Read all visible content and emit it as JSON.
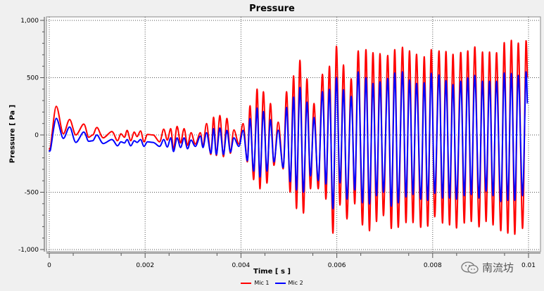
{
  "chart_data": {
    "type": "line",
    "title": "Pressure",
    "xlabel": "Time [ s ]",
    "ylabel": "Pressure [ Pa ]",
    "xlim": [
      0,
      0.01
    ],
    "ylim": [
      -1000,
      1000
    ],
    "x_ticks": [
      0,
      0.002,
      0.004,
      0.006,
      0.008,
      0.01
    ],
    "x_tick_labels": [
      "0",
      "0.002",
      "0.004",
      "0.006",
      "0.008",
      "0.01"
    ],
    "y_ticks": [
      -1000,
      -500,
      0,
      500,
      1000
    ],
    "y_tick_labels": [
      "-1,000",
      "-500",
      "0",
      "500",
      "1,000"
    ],
    "grid": true,
    "legend": "bottom-center",
    "t": [
      0,
      1.5e-05,
      0.000147,
      0.000293,
      0.000425,
      0.000557,
      0.000718,
      0.000821,
      0.000908,
      0.000996,
      0.001128,
      0.001304,
      0.001421,
      0.001495,
      0.001568,
      0.001626,
      0.0017,
      0.001773,
      0.001832,
      0.001905,
      0.001978,
      0.002051,
      0.002168,
      0.0023,
      0.002388,
      0.002462,
      0.002535,
      0.002593,
      0.002667,
      0.00274,
      0.002813,
      0.002886,
      0.00296,
      0.003048,
      0.00315,
      0.003209,
      0.003282,
      0.00337,
      0.003429,
      0.003487,
      0.00356,
      0.003634,
      0.003707,
      0.00378,
      0.003853,
      0.003956,
      0.004044,
      0.004132,
      0.00419,
      0.004264,
      0.004337,
      0.004396,
      0.004469,
      0.004542,
      0.004615,
      0.004689,
      0.004777,
      0.004879,
      0.004952,
      0.005026,
      0.005099,
      0.005158,
      0.005231,
      0.005304,
      0.005377,
      0.005451,
      0.005524,
      0.005612,
      0.0057,
      0.005773,
      0.005846,
      0.005919,
      0.005993,
      0.006066,
      0.006139,
      0.006212,
      0.0063,
      0.006374,
      0.006447,
      0.006535,
      0.006608,
      0.006681,
      0.006755,
      0.006828,
      0.006901,
      0.006974,
      0.007062,
      0.007136,
      0.007209,
      0.007282,
      0.00737,
      0.007443,
      0.007517,
      0.00759,
      0.007663,
      0.007751,
      0.007824,
      0.007897,
      0.007971,
      0.008044,
      0.008132,
      0.008205,
      0.008278,
      0.008352,
      0.008425,
      0.008498,
      0.008586,
      0.008659,
      0.008733,
      0.008806,
      0.008879,
      0.008967,
      0.00904,
      0.009114,
      0.009187,
      0.00926,
      0.009333,
      0.009421,
      0.009494,
      0.009568,
      0.009641,
      0.009714,
      0.009787,
      0.009875,
      0.009948,
      0.009977
    ],
    "series": [
      {
        "name": "Mic 1",
        "color": "#ff0000",
        "values": [
          -130,
          -120,
          250,
          10,
          135,
          0,
          95,
          -20,
          0,
          65,
          -25,
          30,
          -50,
          10,
          -20,
          40,
          -50,
          25,
          -15,
          35,
          -60,
          5,
          0,
          -60,
          50,
          -45,
          55,
          -125,
          75,
          -70,
          55,
          -90,
          20,
          -80,
          20,
          -100,
          100,
          -170,
          155,
          -180,
          170,
          -190,
          145,
          -160,
          45,
          -80,
          100,
          -235,
          255,
          -390,
          400,
          -470,
          377,
          -420,
          275,
          -265,
          112,
          -296,
          377,
          -500,
          516,
          -643,
          653,
          -683,
          490,
          -470,
          275,
          -470,
          530,
          -561,
          600,
          -857,
          775,
          -612,
          612,
          -734,
          490,
          -602,
          734,
          -785,
          745,
          -836,
          718,
          -755,
          710,
          -704,
          694,
          -816,
          745,
          -806,
          765,
          -765,
          734,
          -765,
          704,
          -806,
          683,
          -796,
          745,
          -714,
          734,
          -769,
          728,
          -785,
          704,
          -812,
          720,
          -769,
          734,
          -755,
          769,
          -802,
          724,
          -755,
          724,
          -785,
          718,
          -836,
          806,
          -857,
          826,
          -867,
          802,
          -816,
          822,
          500
        ]
      },
      {
        "name": "Mic 2",
        "color": "#0000ff",
        "values": [
          -140,
          -140,
          145,
          -30,
          70,
          -65,
          25,
          -55,
          -50,
          0,
          -75,
          -40,
          -95,
          -60,
          -70,
          -40,
          -95,
          -50,
          -65,
          -40,
          -100,
          -60,
          -65,
          -100,
          -40,
          -105,
          -25,
          -145,
          -25,
          -110,
          -25,
          -120,
          -45,
          -100,
          -10,
          -110,
          20,
          -160,
          55,
          -170,
          60,
          -170,
          40,
          -150,
          -25,
          -100,
          40,
          -225,
          143,
          -316,
          235,
          -367,
          204,
          -316,
          133,
          -235,
          41,
          -285,
          240,
          -408,
          330,
          -480,
          414,
          -500,
          286,
          -357,
          153,
          -398,
          377,
          -428,
          398,
          -643,
          500,
          -418,
          394,
          -561,
          337,
          -480,
          551,
          -592,
          500,
          -602,
          449,
          -530,
          463,
          -500,
          494,
          -622,
          541,
          -592,
          551,
          -541,
          479,
          -520,
          449,
          -561,
          455,
          -571,
          538,
          -510,
          524,
          -551,
          475,
          -551,
          439,
          -561,
          469,
          -530,
          500,
          -520,
          520,
          -551,
          469,
          -490,
          469,
          -530,
          469,
          -581,
          541,
          -571,
          537,
          -571,
          520,
          -530,
          551,
          275
        ]
      }
    ]
  },
  "watermark": {
    "text": "南流坊",
    "icon": "wechat-icon"
  }
}
